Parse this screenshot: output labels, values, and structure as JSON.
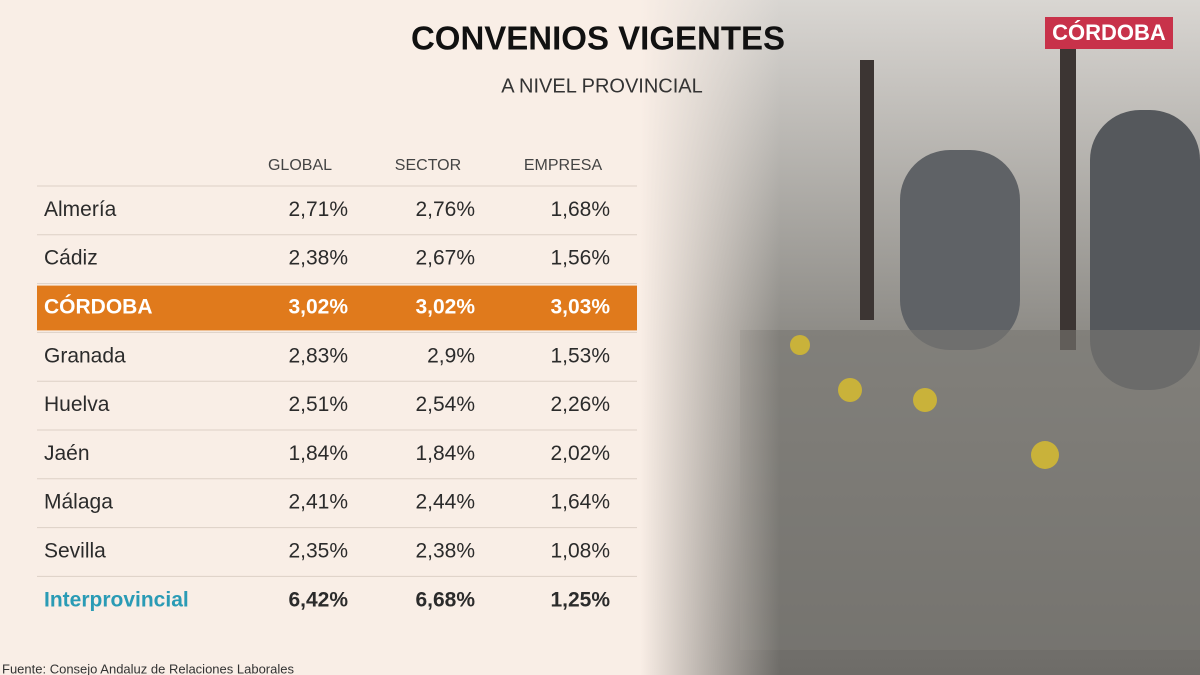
{
  "header": {
    "title": "CONVENIOS VIGENTES",
    "subtitle": "A NIVEL PROVINCIAL",
    "brand": "CÓRDOBA"
  },
  "table": {
    "columns": [
      "GLOBAL",
      "SECTOR",
      "EMPRESA"
    ],
    "rows": [
      [
        "Almería",
        "2,71%",
        "2,76%",
        "1,68%"
      ],
      [
        "Cádiz",
        "2,38%",
        "2,67%",
        "1,56%"
      ],
      [
        "CÓRDOBA",
        "3,02%",
        "3,02%",
        "3,03%"
      ],
      [
        "Granada",
        "2,83%",
        "2,9%",
        "1,53%"
      ],
      [
        "Huelva",
        "2,51%",
        "2,54%",
        "2,26%"
      ],
      [
        "Jaén",
        "1,84%",
        "1,84%",
        "2,02%"
      ],
      [
        "Málaga",
        "2,41%",
        "2,44%",
        "1,64%"
      ],
      [
        "Sevilla",
        "2,35%",
        "2,38%",
        "1,08%"
      ],
      [
        "Interprovincial",
        "6,42%",
        "6,68%",
        "1,25%"
      ]
    ]
  },
  "footer": {
    "source": "Fuente: Consejo Andaluz de Relaciones Laborales"
  }
}
